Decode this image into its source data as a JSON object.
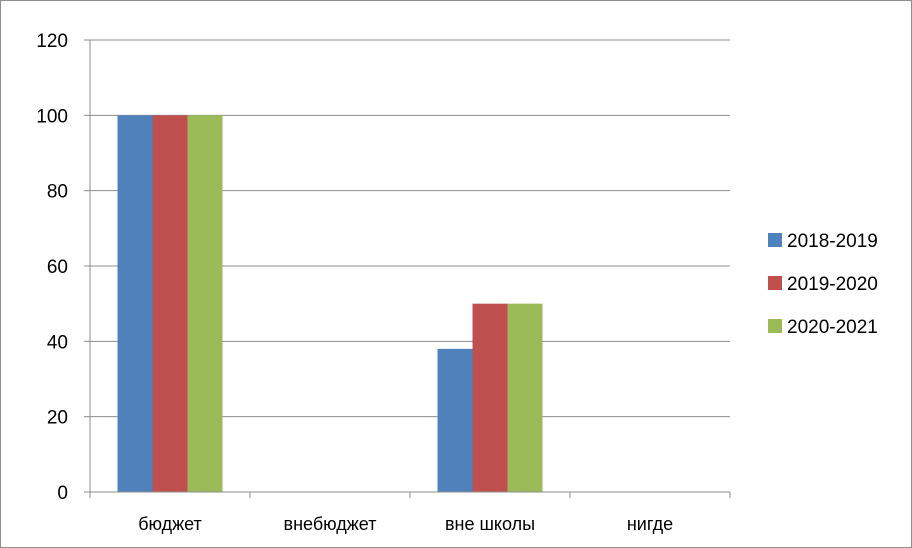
{
  "chart_data": {
    "type": "bar",
    "categories": [
      "бюджет",
      "внебюджет",
      "вне школы",
      "нигде"
    ],
    "series": [
      {
        "name": "2018-2019",
        "color": "#4f81bd",
        "values": [
          100,
          0,
          38,
          0
        ]
      },
      {
        "name": "2019-2020",
        "color": "#c0504d",
        "values": [
          100,
          0,
          50,
          0
        ]
      },
      {
        "name": "2020-2021",
        "color": "#9bbb59",
        "values": [
          100,
          0,
          50,
          0
        ]
      }
    ],
    "ylim": [
      0,
      120
    ],
    "yticks": [
      0,
      20,
      40,
      60,
      80,
      100,
      120
    ],
    "grid": true,
    "legend": "right"
  }
}
